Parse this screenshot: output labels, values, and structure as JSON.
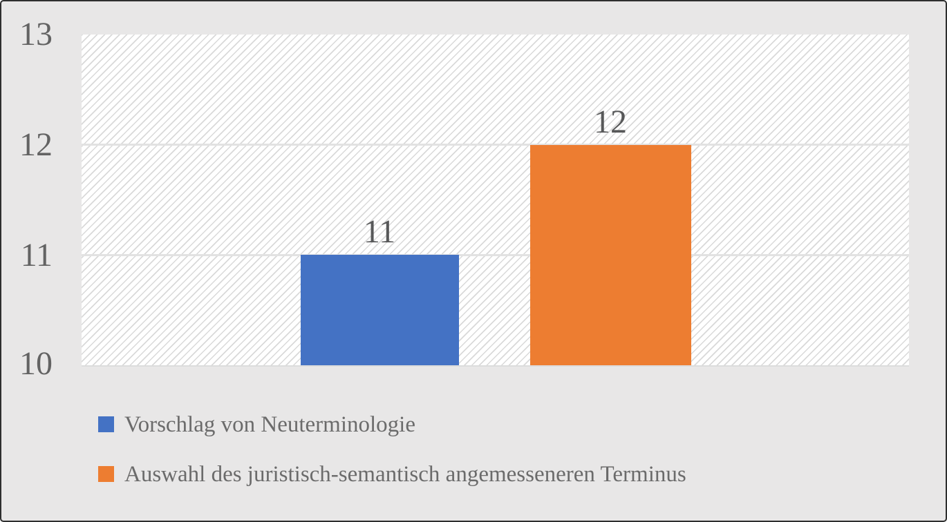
{
  "frame": {
    "background_color": "#e8e7e7",
    "border_color": "#2e2e2e",
    "plot_hatch_color": "#d9d9d9",
    "gridline_color": "#e2e2e2",
    "tick_text_color": "#636363",
    "legend_text_color": "#6b6b6b"
  },
  "chart_data": {
    "type": "bar",
    "title": "",
    "xlabel": "",
    "ylabel": "",
    "categories": [
      ""
    ],
    "series": [
      {
        "name": "Vorschlag von Neuterminologie",
        "value": 11,
        "color": "#4472C4"
      },
      {
        "name": "Auswahl des juristisch-semantisch angemesseneren Terminus",
        "value": 12,
        "color": "#ED7D31"
      }
    ],
    "data_labels": [
      "11",
      "12"
    ],
    "ylim": [
      10,
      13
    ],
    "yticks": [
      "10",
      "11",
      "12",
      "13"
    ],
    "grid": "horizontal gridlines at each integer",
    "legend_position": "bottom-left, stacked vertically",
    "plot_area_fill": "white with light-gray diagonal hatch (/)"
  }
}
